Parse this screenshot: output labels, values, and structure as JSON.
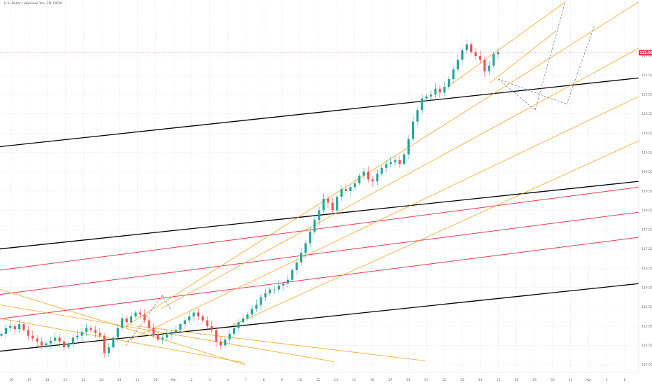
{
  "header": {
    "symbol_title": "U.S. Dollar / Japanese Yen, 1D, FXCM"
  },
  "colors": {
    "background": "#ffffff",
    "grid": "#c9cfe0",
    "up_candle": "#26a69a",
    "down_candle": "#ef5350",
    "channel_black": "#000000",
    "channel_red": "#e53950",
    "channel_orange": "#f5a623",
    "projection": "#6b6f8f",
    "price_tag": "#e8384f",
    "axis_text": "#666666"
  },
  "chart_data": {
    "type": "candlestick",
    "instrument": "USDJPY",
    "price_axis_ticks": [
      "122.000",
      "121.500",
      "121.000",
      "120.500",
      "120.000",
      "119.500",
      "119.000",
      "118.500",
      "118.000",
      "117.500",
      "117.000",
      "116.500",
      "116.000",
      "115.500",
      "115.000",
      "114.500",
      "114.000"
    ],
    "time_axis_ticks": [
      "16",
      "17",
      "18",
      "21",
      "22",
      "23",
      "24",
      "25",
      "28",
      "Mar",
      "2",
      "3",
      "4",
      "7",
      "8",
      "9",
      "10",
      "11",
      "14",
      "15",
      "16",
      "17",
      "18",
      "21",
      "22",
      "23",
      "24",
      "25",
      "28",
      "29",
      "30",
      "31",
      "Apr",
      "5",
      "6"
    ],
    "last_price": "122.084",
    "price_range": [
      113.8,
      123.45
    ],
    "close_path": [
      114.8,
      114.95,
      115.0,
      114.92,
      115.05,
      114.9,
      114.75,
      114.68,
      114.6,
      114.5,
      114.55,
      114.62,
      114.7,
      114.6,
      114.45,
      114.55,
      114.7,
      114.75,
      114.85,
      114.95,
      114.9,
      114.82,
      114.75,
      114.3,
      114.45,
      114.7,
      114.95,
      115.2,
      115.1,
      115.25,
      115.35,
      115.3,
      115.15,
      114.95,
      114.8,
      114.65,
      114.7,
      114.78,
      114.85,
      114.9,
      115.05,
      115.15,
      115.25,
      115.35,
      115.25,
      115.15,
      115.0,
      114.9,
      114.6,
      114.5,
      114.65,
      114.8,
      114.95,
      115.1,
      115.2,
      115.3,
      115.45,
      115.55,
      115.75,
      115.85,
      115.95,
      115.95,
      116.05,
      116.1,
      116.2,
      116.45,
      116.65,
      116.9,
      117.15,
      117.45,
      117.75,
      118.0,
      118.3,
      118.2,
      118.0,
      118.35,
      118.55,
      118.5,
      118.6,
      118.7,
      118.9,
      119.0,
      118.8,
      118.75,
      118.95,
      119.1,
      119.2,
      119.25,
      119.3,
      119.2,
      119.45,
      119.85,
      120.3,
      120.6,
      120.9,
      120.95,
      121.0,
      121.15,
      121.05,
      121.2,
      121.4,
      121.65,
      121.9,
      122.15,
      122.3,
      122.1,
      122.0,
      121.9,
      121.6,
      121.75,
      122.05,
      122.1
    ],
    "lines": [
      {
        "kind": "channel-black",
        "from": [
          0,
          119.65
        ],
        "to": [
          913,
          121.43
        ]
      },
      {
        "kind": "channel-black",
        "from": [
          0,
          117.0
        ],
        "to": [
          913,
          118.75
        ]
      },
      {
        "kind": "channel-black",
        "from": [
          0,
          114.35
        ],
        "to": [
          913,
          116.1
        ]
      },
      {
        "kind": "channel-red",
        "from": [
          0,
          116.45
        ],
        "to": [
          913,
          118.6
        ]
      },
      {
        "kind": "channel-red",
        "from": [
          0,
          115.82
        ],
        "to": [
          913,
          117.95
        ]
      },
      {
        "kind": "channel-red",
        "from": [
          0,
          115.19
        ],
        "to": [
          913,
          117.3
        ]
      },
      {
        "kind": "channel-orange",
        "from": [
          0,
          115.95
        ],
        "to": [
          350,
          114.0
        ]
      },
      {
        "kind": "channel-orange",
        "from": [
          0,
          115.55
        ],
        "to": [
          477,
          114.08
        ]
      },
      {
        "kind": "channel-orange",
        "from": [
          0,
          115.2
        ],
        "to": [
          350,
          114.05
        ]
      },
      {
        "kind": "channel-orange",
        "from": [
          195,
          115.0
        ],
        "to": [
          608,
          114.1
        ]
      },
      {
        "kind": "channel-orange",
        "from": [
          180,
          115.0
        ],
        "to": [
          913,
          123.4
        ]
      },
      {
        "kind": "channel-orange",
        "from": [
          180,
          114.6
        ],
        "to": [
          913,
          120.95
        ]
      },
      {
        "kind": "channel-orange",
        "from": [
          230,
          115.45
        ],
        "to": [
          913,
          122.2
        ]
      },
      {
        "kind": "channel-orange",
        "from": [
          330,
          115.0
        ],
        "to": [
          913,
          119.8
        ]
      },
      {
        "kind": "channel-orange",
        "from": [
          640,
          121.2
        ],
        "to": [
          808,
          123.4
        ]
      },
      {
        "kind": "channel-orange",
        "from": [
          700,
          121.3
        ],
        "to": [
          795,
          122.65
        ]
      },
      {
        "kind": "projection",
        "from": [
          712,
          121.4
        ],
        "to": [
          765,
          120.6
        ]
      },
      {
        "kind": "projection",
        "from": [
          765,
          120.6
        ],
        "to": [
          808,
          123.4
        ]
      },
      {
        "kind": "projection",
        "from": [
          712,
          121.4
        ],
        "to": [
          810,
          120.75
        ]
      },
      {
        "kind": "projection",
        "from": [
          810,
          120.75
        ],
        "to": [
          850,
          122.8
        ]
      },
      {
        "kind": "projection",
        "from": [
          180,
          114.5
        ],
        "to": [
          232,
          115.8
        ]
      },
      {
        "kind": "projection",
        "from": [
          232,
          115.8
        ],
        "to": [
          245,
          115.4
        ]
      }
    ]
  }
}
